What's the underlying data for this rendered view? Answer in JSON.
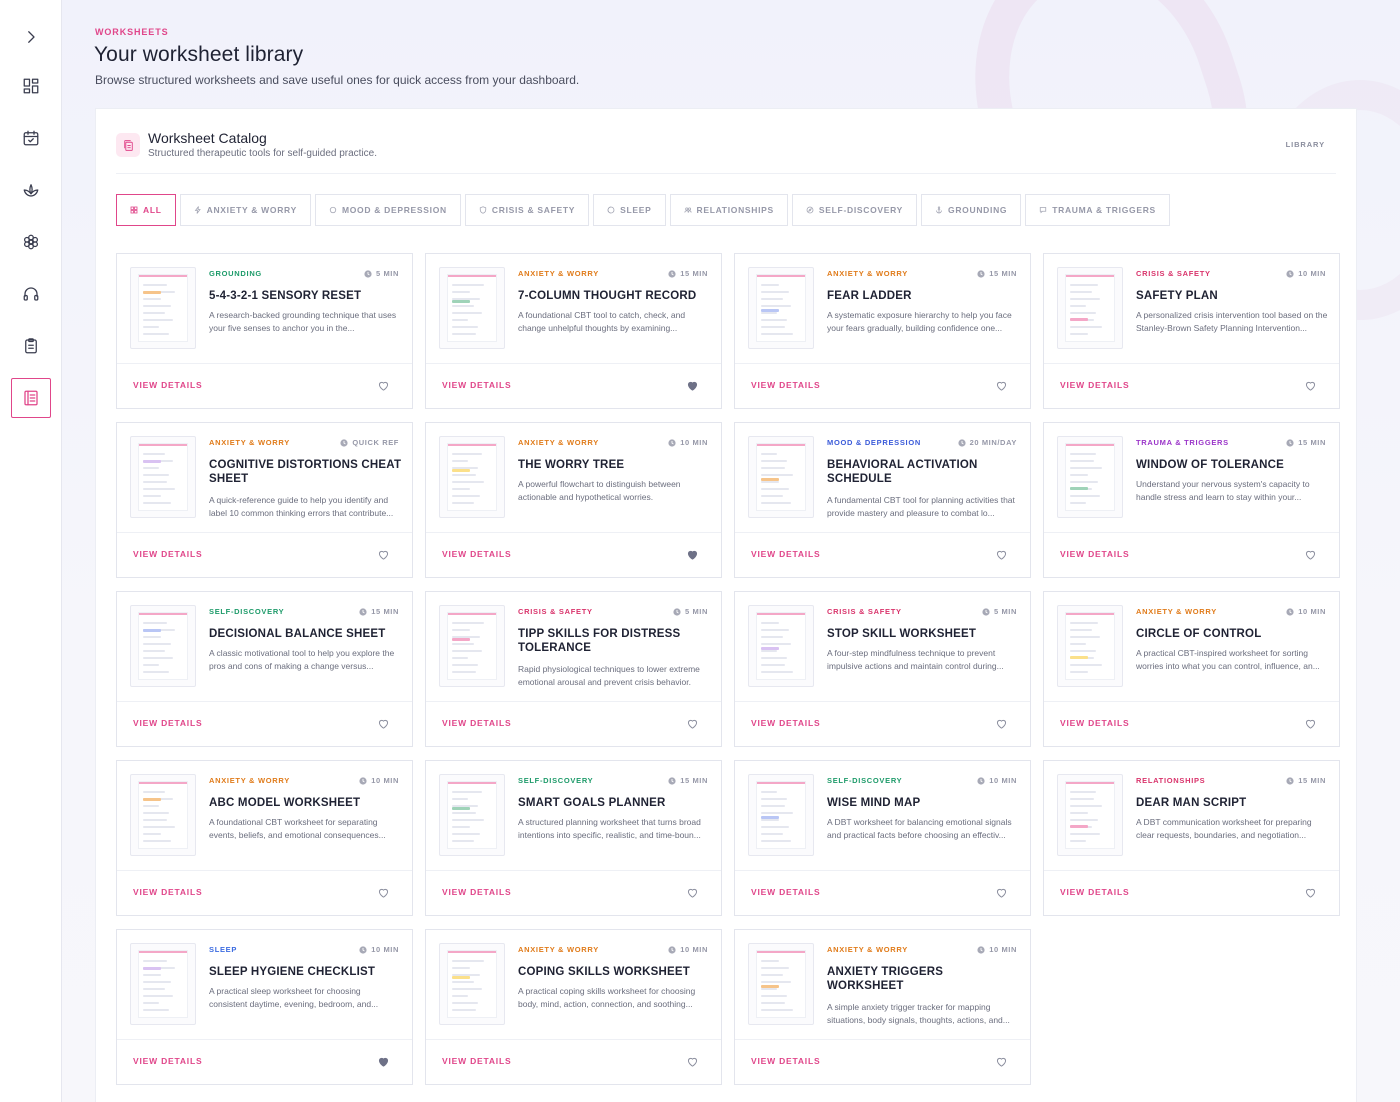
{
  "header": {
    "eyebrow": "WORKSHEETS",
    "title": "Your worksheet library",
    "subtitle": "Browse structured worksheets and save useful ones for quick access from your dashboard."
  },
  "panel": {
    "title": "Worksheet Catalog",
    "subtitle": "Structured therapeutic tools for self-guided practice.",
    "tag": "LIBRARY"
  },
  "filters": [
    {
      "label": "ALL",
      "icon": "grid-icon",
      "active": true
    },
    {
      "label": "ANXIETY & WORRY",
      "icon": "bolt-icon"
    },
    {
      "label": "MOOD & DEPRESSION",
      "icon": "circle-icon"
    },
    {
      "label": "CRISIS & SAFETY",
      "icon": "shield-icon"
    },
    {
      "label": "SLEEP",
      "icon": "moon-icon"
    },
    {
      "label": "RELATIONSHIPS",
      "icon": "people-icon"
    },
    {
      "label": "SELF-DISCOVERY",
      "icon": "compass-icon"
    },
    {
      "label": "GROUNDING",
      "icon": "anchor-icon"
    },
    {
      "label": "TRAUMA & TRIGGERS",
      "icon": "chat-icon"
    }
  ],
  "colors": {
    "accent": "#e0468a",
    "grounding": "#1e9b6a",
    "anxiety": "#e07b1a",
    "crisis": "#d9336b",
    "mood": "#3b5bd9",
    "trauma": "#9b35c9",
    "self_discovery": "#1e9b6a",
    "sleep": "#3b6be0",
    "relationships": "#d9336b",
    "heart_outline": "#8b8e9e",
    "heart_filled": "#6e7187"
  },
  "view_label": "VIEW DETAILS",
  "cards": [
    {
      "category": "GROUNDING",
      "cat_key": "grounding",
      "time": "5 MIN",
      "title": "5-4-3-2-1 SENSORY RESET",
      "desc": "A research-backed grounding technique that uses your five senses to anchor you in the...",
      "saved": false
    },
    {
      "category": "ANXIETY & WORRY",
      "cat_key": "anxiety",
      "time": "15 MIN",
      "title": "7-COLUMN THOUGHT RECORD",
      "desc": "A foundational CBT tool to catch, check, and change unhelpful thoughts by examining...",
      "saved": true
    },
    {
      "category": "ANXIETY & WORRY",
      "cat_key": "anxiety",
      "time": "15 MIN",
      "title": "FEAR LADDER",
      "desc": "A systematic exposure hierarchy to help you face your fears gradually, building confidence one...",
      "saved": false
    },
    {
      "category": "CRISIS & SAFETY",
      "cat_key": "crisis",
      "time": "10 MIN",
      "title": "SAFETY PLAN",
      "desc": "A personalized crisis intervention tool based on the Stanley-Brown Safety Planning Intervention...",
      "saved": false
    },
    {
      "category": "ANXIETY & WORRY",
      "cat_key": "anxiety",
      "time": "QUICK REF",
      "title": "COGNITIVE DISTORTIONS CHEAT SHEET",
      "desc": "A quick-reference guide to help you identify and label 10 common thinking errors that contribute...",
      "saved": false,
      "two_line": true
    },
    {
      "category": "ANXIETY & WORRY",
      "cat_key": "anxiety",
      "time": "10 MIN",
      "title": "THE WORRY TREE",
      "desc": "A powerful flowchart to distinguish between actionable and hypothetical worries.",
      "saved": true
    },
    {
      "category": "MOOD & DEPRESSION",
      "cat_key": "mood",
      "time": "20 MIN/DAY",
      "title": "BEHAVIORAL ACTIVATION SCHEDULE",
      "desc": "A fundamental CBT tool for planning activities that provide mastery and pleasure to combat lo...",
      "saved": false,
      "two_line": true
    },
    {
      "category": "TRAUMA & TRIGGERS",
      "cat_key": "trauma",
      "time": "15 MIN",
      "title": "WINDOW OF TOLERANCE",
      "desc": "Understand your nervous system's capacity to handle stress and learn to stay within your...",
      "saved": false
    },
    {
      "category": "SELF-DISCOVERY",
      "cat_key": "self_discovery",
      "time": "15 MIN",
      "title": "DECISIONAL BALANCE SHEET",
      "desc": "A classic motivational tool to help you explore the pros and cons of making a change versus...",
      "saved": false
    },
    {
      "category": "CRISIS & SAFETY",
      "cat_key": "crisis",
      "time": "5 MIN",
      "title": "TIPP SKILLS FOR DISTRESS TOLERANCE",
      "desc": "Rapid physiological techniques to lower extreme emotional arousal and prevent crisis behavior.",
      "saved": false,
      "two_line": true
    },
    {
      "category": "CRISIS & SAFETY",
      "cat_key": "crisis",
      "time": "5 MIN",
      "title": "STOP SKILL WORKSHEET",
      "desc": "A four-step mindfulness technique to prevent impulsive actions and maintain control during...",
      "saved": false
    },
    {
      "category": "ANXIETY & WORRY",
      "cat_key": "anxiety",
      "time": "10 MIN",
      "title": "CIRCLE OF CONTROL",
      "desc": "A practical CBT-inspired worksheet for sorting worries into what you can control, influence, an...",
      "saved": false
    },
    {
      "category": "ANXIETY & WORRY",
      "cat_key": "anxiety",
      "time": "10 MIN",
      "title": "ABC MODEL WORKSHEET",
      "desc": "A foundational CBT worksheet for separating events, beliefs, and emotional consequences...",
      "saved": false
    },
    {
      "category": "SELF-DISCOVERY",
      "cat_key": "self_discovery",
      "time": "15 MIN",
      "title": "SMART GOALS PLANNER",
      "desc": "A structured planning worksheet that turns broad intentions into specific, realistic, and time-boun...",
      "saved": false
    },
    {
      "category": "SELF-DISCOVERY",
      "cat_key": "self_discovery",
      "time": "10 MIN",
      "title": "WISE MIND MAP",
      "desc": "A DBT worksheet for balancing emotional signals and practical facts before choosing an effectiv...",
      "saved": false
    },
    {
      "category": "RELATIONSHIPS",
      "cat_key": "relationships",
      "time": "15 MIN",
      "title": "DEAR MAN SCRIPT",
      "desc": "A DBT communication worksheet for preparing clear requests, boundaries, and negotiation...",
      "saved": false
    },
    {
      "category": "SLEEP",
      "cat_key": "sleep",
      "time": "10 MIN",
      "title": "SLEEP HYGIENE CHECKLIST",
      "desc": "A practical sleep worksheet for choosing consistent daytime, evening, bedroom, and...",
      "saved": true
    },
    {
      "category": "ANXIETY & WORRY",
      "cat_key": "anxiety",
      "time": "10 MIN",
      "title": "COPING SKILLS WORKSHEET",
      "desc": "A practical coping skills worksheet for choosing body, mind, action, connection, and soothing...",
      "saved": false
    },
    {
      "category": "ANXIETY & WORRY",
      "cat_key": "anxiety",
      "time": "10 MIN",
      "title": "ANXIETY TRIGGERS WORKSHEET",
      "desc": "A simple anxiety trigger tracker for mapping situations, body signals, thoughts, actions, and...",
      "saved": false,
      "two_line": true
    }
  ]
}
